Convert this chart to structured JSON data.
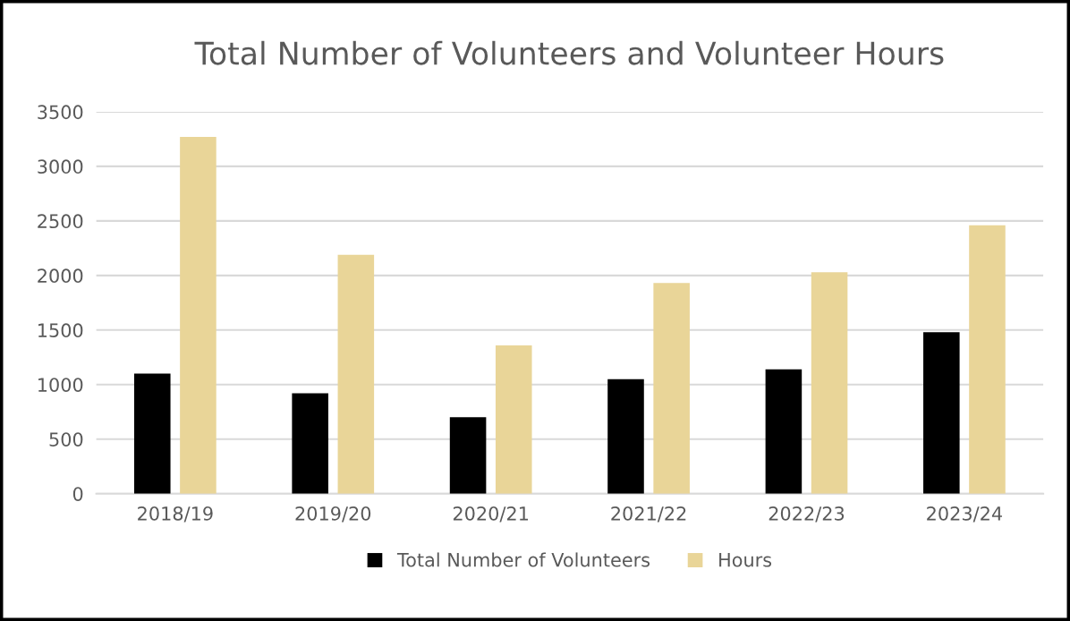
{
  "chart_data": {
    "type": "bar",
    "title": "Total Number of Volunteers and Volunteer Hours",
    "categories": [
      "2018/19",
      "2019/20",
      "2020/21",
      "2021/22",
      "2022/23",
      "2023/24"
    ],
    "series": [
      {
        "name": "Total Number of Volunteers",
        "color": "#000000",
        "values": [
          1100,
          920,
          700,
          1050,
          1140,
          1480
        ]
      },
      {
        "name": "Hours",
        "color": "#e9d598",
        "values": [
          3270,
          2190,
          1360,
          1930,
          2030,
          2460
        ]
      }
    ],
    "ylim": [
      0,
      3500
    ],
    "yticks": [
      0,
      500,
      1000,
      1500,
      2000,
      2500,
      3000,
      3500
    ],
    "grid": "y",
    "legend": "bottom"
  }
}
